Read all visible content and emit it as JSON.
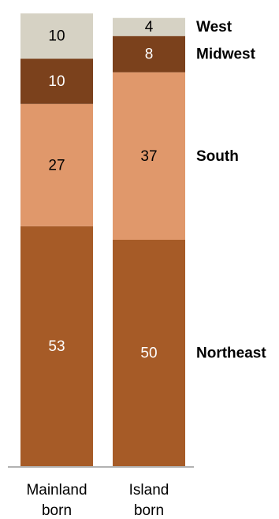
{
  "chart_data": {
    "type": "bar",
    "stacked": true,
    "percent_stacked": true,
    "categories": [
      "Mainland born",
      "Island born"
    ],
    "category_lines": [
      [
        "Mainland",
        "born"
      ],
      [
        "Island",
        "born"
      ]
    ],
    "series": [
      {
        "name": "Northeast",
        "values": [
          53,
          50
        ],
        "color": "#a65b27",
        "label_color": "#ffffff"
      },
      {
        "name": "South",
        "values": [
          27,
          37
        ],
        "color": "#e0986b",
        "label_color": "#000000"
      },
      {
        "name": "Midwest",
        "values": [
          10,
          8
        ],
        "color": "#7b411c",
        "label_color": "#ffffff"
      },
      {
        "name": "West",
        "values": [
          10,
          4
        ],
        "color": "#d6d2c4",
        "label_color": "#000000"
      }
    ],
    "ylim": [
      0,
      100
    ],
    "legend": "right, labels aligned with Island born segments"
  }
}
